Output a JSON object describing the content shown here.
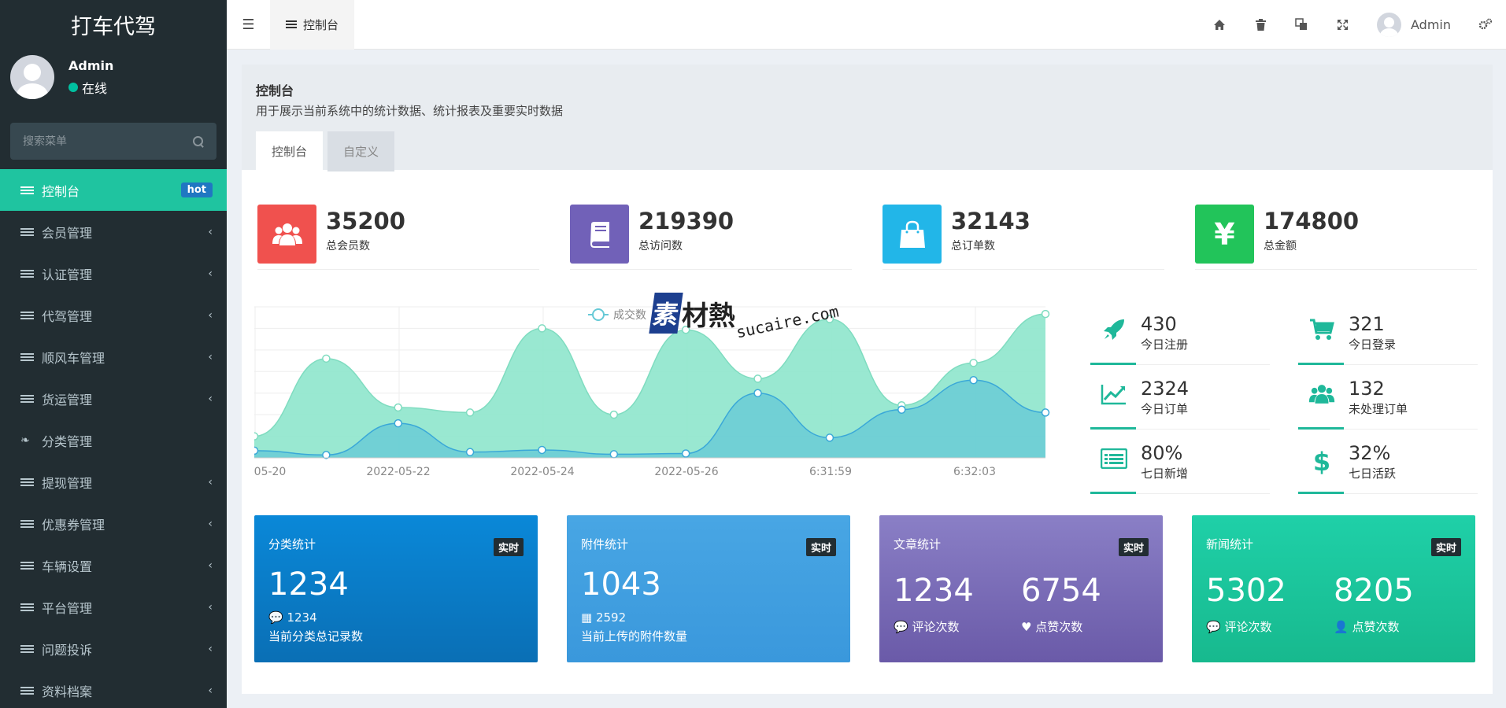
{
  "sidebar": {
    "logo": "打车代驾",
    "user": {
      "name": "Admin",
      "status": "在线"
    },
    "search_placeholder": "搜索菜单",
    "items": [
      {
        "label": "控制台",
        "badge": "hot",
        "active": true
      },
      {
        "label": "会员管理"
      },
      {
        "label": "认证管理"
      },
      {
        "label": "代驾管理"
      },
      {
        "label": "顺风车管理"
      },
      {
        "label": "货运管理"
      },
      {
        "label": "分类管理"
      },
      {
        "label": "提现管理"
      },
      {
        "label": "优惠券管理"
      },
      {
        "label": "车辆设置"
      },
      {
        "label": "平台管理"
      },
      {
        "label": "问题投诉"
      },
      {
        "label": "资料档案"
      }
    ]
  },
  "header": {
    "tab_label": "控制台",
    "user_name": "Admin"
  },
  "panel": {
    "title": "控制台",
    "description": "用于展示当前系统中的统计数据、统计报表及重要实时数据",
    "tabs": [
      "控制台",
      "自定义"
    ]
  },
  "stats": [
    {
      "value": "35200",
      "label": "总会员数",
      "color": "#f0514e",
      "icon": "users-icon"
    },
    {
      "value": "219390",
      "label": "总访问数",
      "color": "#7161b8",
      "icon": "book-icon"
    },
    {
      "value": "32143",
      "label": "总订单数",
      "color": "#22b6e8",
      "icon": "shopping-bag-icon"
    },
    {
      "value": "174800",
      "label": "总金额",
      "color": "#22c45a",
      "icon": "yen-icon"
    }
  ],
  "mini_stats": [
    {
      "value": "430",
      "label": "今日注册",
      "icon": "rocket-icon"
    },
    {
      "value": "321",
      "label": "今日登录",
      "icon": "cart-icon"
    },
    {
      "value": "2324",
      "label": "今日订单",
      "icon": "line-chart-icon"
    },
    {
      "value": "132",
      "label": "未处理订单",
      "icon": "users-icon"
    },
    {
      "value": "80%",
      "label": "七日新增",
      "icon": "list-icon"
    },
    {
      "value": "32%",
      "label": "七日活跃",
      "icon": "dollar-icon"
    }
  ],
  "cards": [
    {
      "title": "分类统计",
      "tag": "实时",
      "big": "1234",
      "sub_count": "1234",
      "sub_label": "当前分类总记录数",
      "color_top": "#0a88d8",
      "color_bottom": "#0a6fb5"
    },
    {
      "title": "附件统计",
      "tag": "实时",
      "big": "1043",
      "sub_count": "2592",
      "sub_label": "当前上传的附件数量",
      "color_top": "#48a6e4",
      "color_bottom": "#3a98dc"
    },
    {
      "title": "文章统计",
      "tag": "实时",
      "left_big": "1234",
      "left_label": "评论次数",
      "right_big": "6754",
      "right_label": "点赞次数",
      "color_top": "#8a7fc6",
      "color_bottom": "#6a5aa8"
    },
    {
      "title": "新闻统计",
      "tag": "实时",
      "left_big": "5302",
      "left_label": "评论次数",
      "right_big": "8205",
      "right_label": "点赞次数",
      "color_top": "#1fd0a8",
      "color_bottom": "#17b98e"
    }
  ],
  "chart_data": {
    "type": "area",
    "x_tick_labels": [
      "05-20",
      "2022-05-22",
      "2022-05-24",
      "2022-05-26",
      "6:31:59",
      "6:32:03"
    ],
    "legend": "成交数",
    "series": [
      {
        "values": [
          30,
          138,
          70,
          63,
          180,
          60,
          178,
          110,
          193,
          73,
          132,
          200
        ]
      },
      {
        "values": [
          10,
          4,
          48,
          8,
          11,
          5,
          6,
          90,
          28,
          67,
          108,
          63
        ]
      }
    ],
    "ylim": [
      0,
      210
    ],
    "colors": [
      "#8ee6cc",
      "#66c9d6"
    ]
  },
  "watermark": {
    "logo": "素",
    "text": "材熱",
    "url": "sucaire.com"
  }
}
